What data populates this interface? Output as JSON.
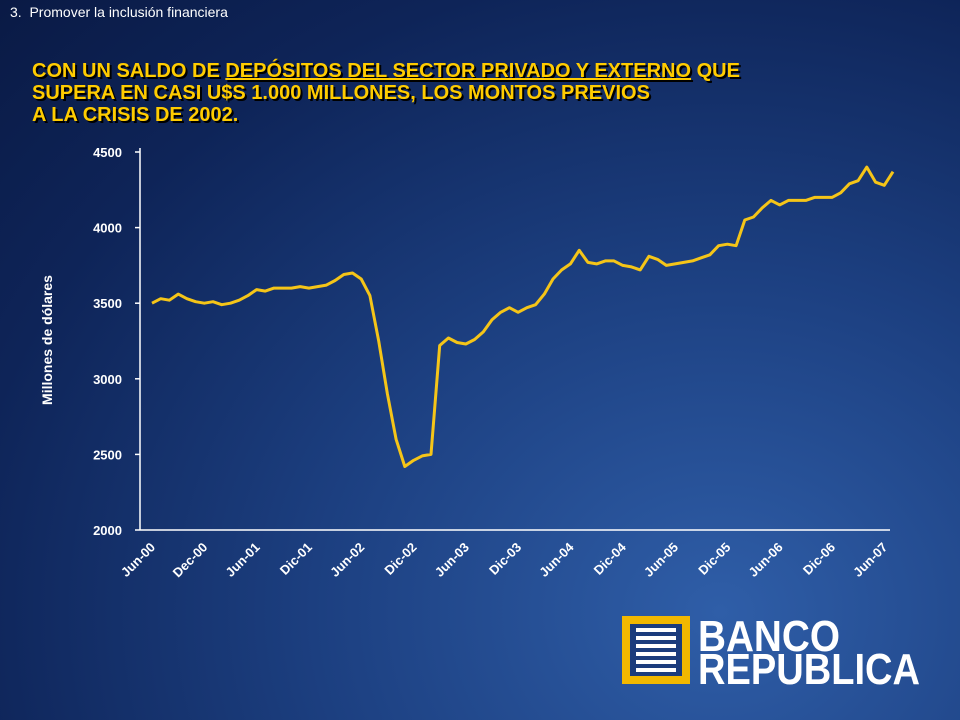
{
  "header": "3.  Promover la inclusión financiera",
  "logo": [
    "BANCO",
    "REPUBLICA"
  ],
  "chart_data": {
    "type": "line",
    "title": [
      "CON UN SALDO DE",
      "DEPÓSITOS DEL SECTOR PRIVADO Y EXTERNO",
      "QUE",
      "SUPERA EN CASI U$S 1.000 MILLONES, LOS MONTOS PREVIOS",
      "A LA CRISIS DE 2002."
    ],
    "y_label": "Millones de dólares",
    "ylim": [
      2000,
      4500
    ],
    "yticks": [
      2000,
      2500,
      3000,
      3500,
      4000,
      4500
    ],
    "categories": [
      "Jun-00",
      null,
      null,
      null,
      null,
      null,
      "Dec-00",
      null,
      null,
      null,
      null,
      null,
      "Jun-01",
      null,
      null,
      null,
      null,
      null,
      "Dic-01",
      null,
      null,
      null,
      null,
      null,
      "Jun-02",
      null,
      null,
      null,
      null,
      null,
      "Dic-02",
      null,
      null,
      null,
      null,
      null,
      "Jun-03",
      null,
      null,
      null,
      null,
      null,
      "Dic-03",
      null,
      null,
      null,
      null,
      null,
      "Jun-04",
      null,
      null,
      null,
      null,
      null,
      "Dic-04",
      null,
      null,
      null,
      null,
      null,
      "Jun-05",
      null,
      null,
      null,
      null,
      null,
      "Dic-05",
      null,
      null,
      null,
      null,
      null,
      "Jun-06",
      null,
      null,
      null,
      null,
      null,
      "Dic-06",
      null,
      null,
      null,
      null,
      null,
      "Jun-07",
      null
    ],
    "series": [
      {
        "color": "#f5c518",
        "values": [
          3500,
          3530,
          3520,
          3560,
          3530,
          3510,
          3500,
          3510,
          3490,
          3500,
          3520,
          3550,
          3590,
          3580,
          3600,
          3600,
          3600,
          3610,
          3600,
          3610,
          3620,
          3650,
          3690,
          3700,
          3660,
          3550,
          3250,
          2900,
          2600,
          2420,
          2460,
          2490,
          2500,
          3220,
          3270,
          3240,
          3230,
          3260,
          3310,
          3390,
          3440,
          3470,
          3440,
          3470,
          3490,
          3560,
          3660,
          3720,
          3760,
          3850,
          3770,
          3760,
          3780,
          3780,
          3750,
          3740,
          3720,
          3810,
          3790,
          3750,
          3760,
          3770,
          3780,
          3800,
          3820,
          3880,
          3890,
          3880,
          4050,
          4070,
          4130,
          4180,
          4150,
          4180,
          4180,
          4180,
          4200,
          4200,
          4200,
          4230,
          4290,
          4310,
          4400,
          4300,
          4280,
          4370
        ]
      }
    ]
  }
}
